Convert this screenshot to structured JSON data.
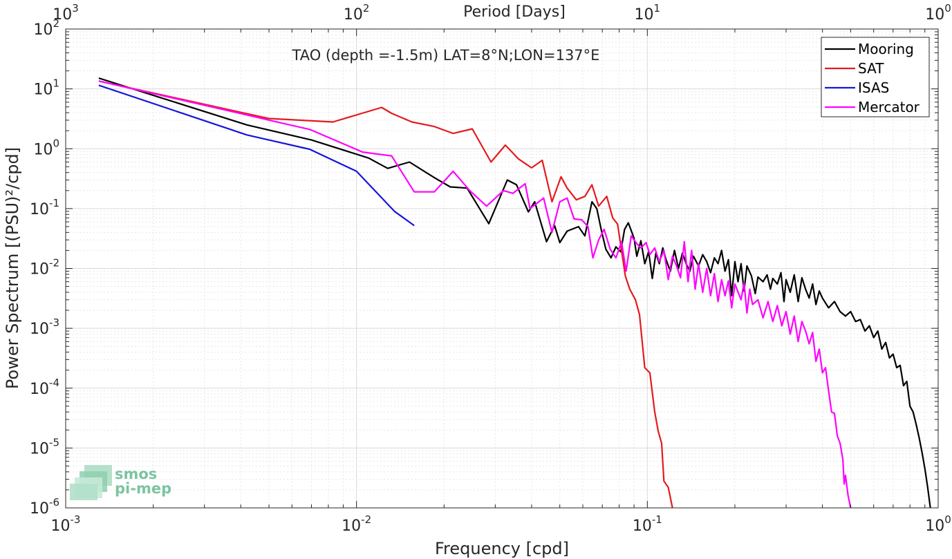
{
  "chart_data": {
    "type": "line",
    "title": "TAO (depth =-1.5m) LAT=8°N;LON=137°E",
    "xlabel": "Frequency [cpd]",
    "ylabel": "Power Spectrum [(PSU)²/cpd]",
    "top_xlabel": "Period [Days]",
    "x_scale": "log",
    "y_scale": "log",
    "xlim": [
      0.001,
      1
    ],
    "ylim": [
      1e-06,
      100
    ],
    "grid": true,
    "legend_position": "top-right",
    "x_ticks": [
      {
        "base": "10",
        "exp": "-3"
      },
      {
        "base": "10",
        "exp": "-2"
      },
      {
        "base": "10",
        "exp": "-1"
      },
      {
        "base": "10",
        "exp": "0"
      }
    ],
    "top_x_ticks": [
      {
        "base": "10",
        "exp": "3"
      },
      {
        "base": "10",
        "exp": "2"
      },
      {
        "base": "10",
        "exp": "1"
      },
      {
        "base": "10",
        "exp": "0"
      }
    ],
    "y_ticks": [
      {
        "base": "10",
        "exp": "-6"
      },
      {
        "base": "10",
        "exp": "-5"
      },
      {
        "base": "10",
        "exp": "-4"
      },
      {
        "base": "10",
        "exp": "-3"
      },
      {
        "base": "10",
        "exp": "-2"
      },
      {
        "base": "10",
        "exp": "-1"
      },
      {
        "base": "10",
        "exp": "0"
      },
      {
        "base": "10",
        "exp": "1"
      },
      {
        "base": "10",
        "exp": "2"
      }
    ],
    "watermark": {
      "line1": "smos",
      "line2": "pi-mep"
    },
    "series": [
      {
        "name": "Mooring",
        "color": "#000000",
        "points": [
          [
            0.0013,
            15.1
          ],
          [
            0.0042,
            2.5
          ],
          [
            0.007,
            1.4
          ],
          [
            0.011,
            0.7
          ],
          [
            0.0128,
            0.47
          ],
          [
            0.0152,
            0.6
          ],
          [
            0.0185,
            0.33
          ],
          [
            0.021,
            0.23
          ],
          [
            0.024,
            0.22
          ],
          [
            0.0285,
            0.056
          ],
          [
            0.033,
            0.3
          ],
          [
            0.0355,
            0.25
          ],
          [
            0.039,
            0.088
          ],
          [
            0.041,
            0.13
          ],
          [
            0.045,
            0.028
          ],
          [
            0.048,
            0.052
          ],
          [
            0.05,
            0.027
          ],
          [
            0.053,
            0.042
          ],
          [
            0.058,
            0.05
          ],
          [
            0.061,
            0.035
          ],
          [
            0.0645,
            0.13
          ],
          [
            0.067,
            0.1
          ],
          [
            0.0695,
            0.043
          ],
          [
            0.072,
            0.021
          ],
          [
            0.075,
            0.015
          ],
          [
            0.078,
            0.023
          ],
          [
            0.081,
            0.019
          ],
          [
            0.0835,
            0.045
          ],
          [
            0.086,
            0.058
          ],
          [
            0.09,
            0.032
          ],
          [
            0.092,
            0.016
          ],
          [
            0.095,
            0.029
          ],
          [
            0.098,
            0.012
          ],
          [
            0.101,
            0.019
          ],
          [
            0.104,
            0.0068
          ],
          [
            0.107,
            0.018
          ],
          [
            0.11,
            0.012
          ],
          [
            0.113,
            0.022
          ],
          [
            0.116,
            0.014
          ],
          [
            0.12,
            0.009
          ],
          [
            0.124,
            0.02
          ],
          [
            0.128,
            0.01
          ],
          [
            0.132,
            0.018
          ],
          [
            0.136,
            0.012
          ],
          [
            0.14,
            0.009
          ],
          [
            0.144,
            0.016
          ],
          [
            0.15,
            0.011
          ],
          [
            0.155,
            0.017
          ],
          [
            0.16,
            0.013
          ],
          [
            0.165,
            0.0085
          ],
          [
            0.17,
            0.015
          ],
          [
            0.175,
            0.012
          ],
          [
            0.18,
            0.02
          ],
          [
            0.185,
            0.009
          ],
          [
            0.19,
            0.014
          ],
          [
            0.195,
            0.0035
          ],
          [
            0.2,
            0.013
          ],
          [
            0.205,
            0.006
          ],
          [
            0.21,
            0.012
          ],
          [
            0.215,
            0.0042
          ],
          [
            0.22,
            0.011
          ],
          [
            0.228,
            0.0075
          ],
          [
            0.235,
            0.0038
          ],
          [
            0.24,
            0.0072
          ],
          [
            0.25,
            0.006
          ],
          [
            0.258,
            0.0078
          ],
          [
            0.265,
            0.0045
          ],
          [
            0.27,
            0.0068
          ],
          [
            0.28,
            0.0055
          ],
          [
            0.288,
            0.0085
          ],
          [
            0.295,
            0.0028
          ],
          [
            0.3,
            0.0065
          ],
          [
            0.31,
            0.004
          ],
          [
            0.32,
            0.0078
          ],
          [
            0.33,
            0.0028
          ],
          [
            0.34,
            0.007
          ],
          [
            0.35,
            0.0045
          ],
          [
            0.36,
            0.0032
          ],
          [
            0.37,
            0.0055
          ],
          [
            0.38,
            0.0025
          ],
          [
            0.39,
            0.0042
          ],
          [
            0.4,
            0.0032
          ],
          [
            0.42,
            0.0022
          ],
          [
            0.44,
            0.0028
          ],
          [
            0.46,
            0.0019
          ],
          [
            0.48,
            0.0016
          ],
          [
            0.5,
            0.0019
          ],
          [
            0.52,
            0.0013
          ],
          [
            0.54,
            0.0014
          ],
          [
            0.56,
            0.0009
          ],
          [
            0.58,
            0.0011
          ],
          [
            0.6,
            0.0007
          ],
          [
            0.62,
            0.0009
          ],
          [
            0.64,
            0.00045
          ],
          [
            0.66,
            0.00058
          ],
          [
            0.68,
            0.00032
          ],
          [
            0.7,
            0.00037
          ],
          [
            0.72,
            0.00022
          ],
          [
            0.74,
            0.00024
          ],
          [
            0.76,
            0.00011
          ],
          [
            0.78,
            0.00013
          ],
          [
            0.8,
            5e-05
          ],
          [
            0.82,
            4e-05
          ],
          [
            0.84,
            2.5e-05
          ],
          [
            0.86,
            1.5e-05
          ],
          [
            0.88,
            8.5e-06
          ],
          [
            0.9,
            4.5e-06
          ],
          [
            0.92,
            2.2e-06
          ],
          [
            0.94,
            1e-06
          ]
        ]
      },
      {
        "name": "SAT",
        "color": "#e41a1c",
        "points": [
          [
            0.0013,
            13.5
          ],
          [
            0.005,
            3.2
          ],
          [
            0.0083,
            2.8
          ],
          [
            0.0122,
            4.9
          ],
          [
            0.0132,
            3.9
          ],
          [
            0.0155,
            2.8
          ],
          [
            0.0185,
            2.35
          ],
          [
            0.0215,
            1.8
          ],
          [
            0.025,
            2.15
          ],
          [
            0.029,
            0.6
          ],
          [
            0.0325,
            1.15
          ],
          [
            0.036,
            0.68
          ],
          [
            0.04,
            0.48
          ],
          [
            0.0435,
            0.64
          ],
          [
            0.047,
            0.13
          ],
          [
            0.0505,
            0.34
          ],
          [
            0.053,
            0.22
          ],
          [
            0.057,
            0.14
          ],
          [
            0.061,
            0.16
          ],
          [
            0.0645,
            0.25
          ],
          [
            0.068,
            0.11
          ],
          [
            0.0725,
            0.16
          ],
          [
            0.076,
            0.07
          ],
          [
            0.079,
            0.055
          ],
          [
            0.0815,
            0.02
          ],
          [
            0.084,
            0.0075
          ],
          [
            0.087,
            0.0045
          ],
          [
            0.091,
            0.003
          ],
          [
            0.094,
            0.0017
          ],
          [
            0.098,
            0.00022
          ],
          [
            0.102,
            0.00018
          ],
          [
            0.106,
            4e-05
          ],
          [
            0.109,
            1.9e-05
          ],
          [
            0.112,
            1.2e-05
          ],
          [
            0.114,
            2.8e-06
          ],
          [
            0.118,
            2.2e-06
          ],
          [
            0.122,
            1e-06
          ]
        ]
      },
      {
        "name": "ISAS",
        "color": "#1515dc",
        "points": [
          [
            0.0013,
            11.5
          ],
          [
            0.0042,
            1.7
          ],
          [
            0.0069,
            0.98
          ],
          [
            0.01,
            0.42
          ],
          [
            0.0135,
            0.09
          ],
          [
            0.0158,
            0.052
          ]
        ]
      },
      {
        "name": "Mercator",
        "color": "#ff00ff",
        "points": [
          [
            0.0013,
            13.5
          ],
          [
            0.0069,
            2.1
          ],
          [
            0.0105,
            0.88
          ],
          [
            0.0132,
            0.76
          ],
          [
            0.0158,
            0.19
          ],
          [
            0.0185,
            0.19
          ],
          [
            0.0215,
            0.42
          ],
          [
            0.0245,
            0.2
          ],
          [
            0.028,
            0.11
          ],
          [
            0.032,
            0.2
          ],
          [
            0.0345,
            0.18
          ],
          [
            0.038,
            0.26
          ],
          [
            0.0395,
            0.1
          ],
          [
            0.044,
            0.15
          ],
          [
            0.047,
            0.04
          ],
          [
            0.05,
            0.13
          ],
          [
            0.053,
            0.15
          ],
          [
            0.056,
            0.067
          ],
          [
            0.0595,
            0.065
          ],
          [
            0.0625,
            0.05
          ],
          [
            0.065,
            0.015
          ],
          [
            0.068,
            0.03
          ],
          [
            0.071,
            0.045
          ],
          [
            0.0745,
            0.021
          ],
          [
            0.078,
            0.015
          ],
          [
            0.0815,
            0.028
          ],
          [
            0.0845,
            0.009
          ],
          [
            0.088,
            0.035
          ],
          [
            0.092,
            0.026
          ],
          [
            0.095,
            0.022
          ],
          [
            0.099,
            0.027
          ],
          [
            0.102,
            0.017
          ],
          [
            0.106,
            0.022
          ],
          [
            0.11,
            0.013
          ],
          [
            0.114,
            0.02
          ],
          [
            0.118,
            0.0065
          ],
          [
            0.122,
            0.016
          ],
          [
            0.126,
            0.011
          ],
          [
            0.13,
            0.007
          ],
          [
            0.134,
            0.028
          ],
          [
            0.138,
            0.006
          ],
          [
            0.142,
            0.02
          ],
          [
            0.146,
            0.0045
          ],
          [
            0.15,
            0.012
          ],
          [
            0.155,
            0.004
          ],
          [
            0.16,
            0.01
          ],
          [
            0.165,
            0.0035
          ],
          [
            0.17,
            0.0082
          ],
          [
            0.175,
            0.0028
          ],
          [
            0.18,
            0.0065
          ],
          [
            0.185,
            0.0035
          ],
          [
            0.19,
            0.0062
          ],
          [
            0.195,
            0.0022
          ],
          [
            0.2,
            0.0055
          ],
          [
            0.21,
            0.003
          ],
          [
            0.215,
            0.0058
          ],
          [
            0.22,
            0.0018
          ],
          [
            0.225,
            0.0045
          ],
          [
            0.23,
            0.0025
          ],
          [
            0.24,
            0.003
          ],
          [
            0.25,
            0.0015
          ],
          [
            0.26,
            0.0028
          ],
          [
            0.27,
            0.0013
          ],
          [
            0.28,
            0.0024
          ],
          [
            0.29,
            0.0011
          ],
          [
            0.3,
            0.0019
          ],
          [
            0.31,
            0.0008
          ],
          [
            0.32,
            0.0016
          ],
          [
            0.33,
            0.0006
          ],
          [
            0.34,
            0.0013
          ],
          [
            0.35,
            0.0009
          ],
          [
            0.36,
            0.00055
          ],
          [
            0.37,
            0.00085
          ],
          [
            0.38,
            0.00028
          ],
          [
            0.39,
            0.00045
          ],
          [
            0.4,
            0.00018
          ],
          [
            0.41,
            0.00022
          ],
          [
            0.42,
            9e-05
          ],
          [
            0.43,
            4e-05
          ],
          [
            0.44,
            3.8e-05
          ],
          [
            0.45,
            1.6e-05
          ],
          [
            0.46,
            1.2e-05
          ],
          [
            0.47,
            6.5e-06
          ],
          [
            0.475,
            2.5e-06
          ],
          [
            0.48,
            3.5e-06
          ],
          [
            0.49,
            1.6e-06
          ],
          [
            0.5,
            1e-06
          ]
        ]
      }
    ]
  }
}
